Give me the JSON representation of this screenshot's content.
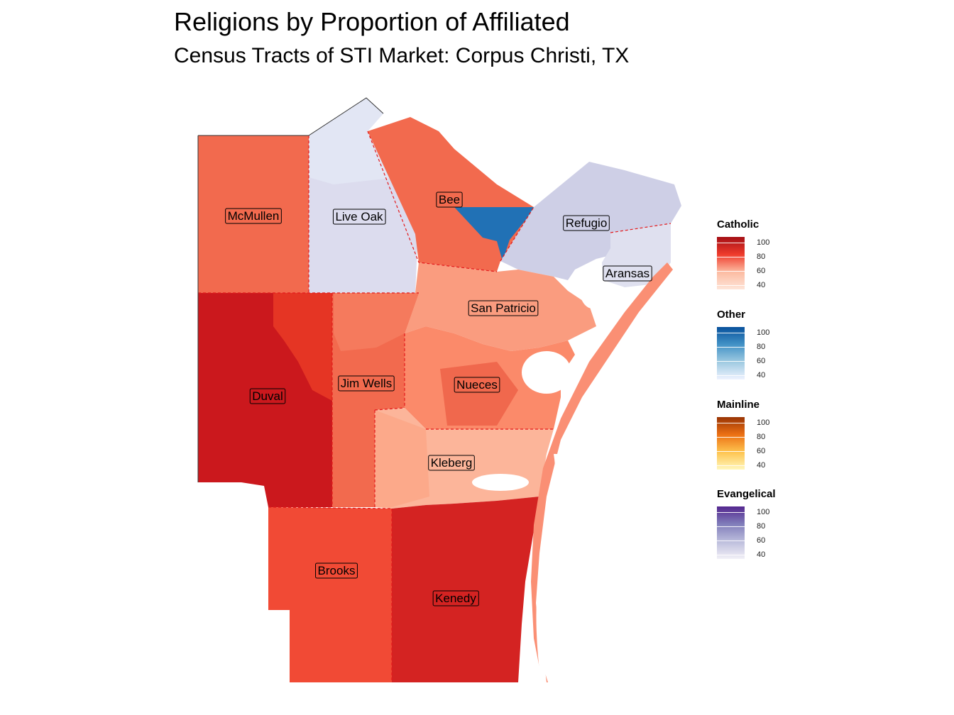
{
  "title": "Religions by Proportion of Affiliated",
  "subtitle": "Census Tracts of STI Market: Corpus Christi, TX",
  "counties": [
    {
      "name": "McMullen",
      "religion": "Catholic",
      "level": 62
    },
    {
      "name": "Live Oak",
      "religion": "Evangelical",
      "level": 38
    },
    {
      "name": "Bee",
      "religion": "Catholic",
      "level": 66
    },
    {
      "name": "Refugio",
      "religion": "Evangelical",
      "level": 44
    },
    {
      "name": "Aransas",
      "religion": "Evangelical",
      "level": 36
    },
    {
      "name": "San Patricio",
      "religion": "Catholic",
      "level": 50
    },
    {
      "name": "Duval",
      "religion": "Catholic",
      "level": 88
    },
    {
      "name": "Jim Wells",
      "religion": "Catholic",
      "level": 62
    },
    {
      "name": "Nueces",
      "religion": "Catholic",
      "level": 55
    },
    {
      "name": "Kleberg",
      "religion": "Catholic",
      "level": 48
    },
    {
      "name": "Brooks",
      "religion": "Catholic",
      "level": 72
    },
    {
      "name": "Kenedy",
      "religion": "Catholic",
      "level": 86
    }
  ],
  "colors": {
    "catholic_high": "#b2182b",
    "catholic_low": "#fee0d2",
    "other_high": "#08519c",
    "other_low": "#deebf7",
    "mainline_high": "#a63603",
    "mainline_low": "#fff7bc",
    "evangelical_high": "#54278f",
    "evangelical_low": "#f2f0f7",
    "county_border": "#e41a1c"
  },
  "legend": [
    {
      "title": "Catholic",
      "ticks": [
        "100",
        "80",
        "60",
        "40"
      ],
      "scale": "reds"
    },
    {
      "title": "Other",
      "ticks": [
        "100",
        "80",
        "60",
        "40"
      ],
      "scale": "blues"
    },
    {
      "title": "Mainline",
      "ticks": [
        "100",
        "80",
        "60",
        "40"
      ],
      "scale": "oranges"
    },
    {
      "title": "Evangelical",
      "ticks": [
        "100",
        "80",
        "60",
        "40"
      ],
      "scale": "purples"
    }
  ]
}
